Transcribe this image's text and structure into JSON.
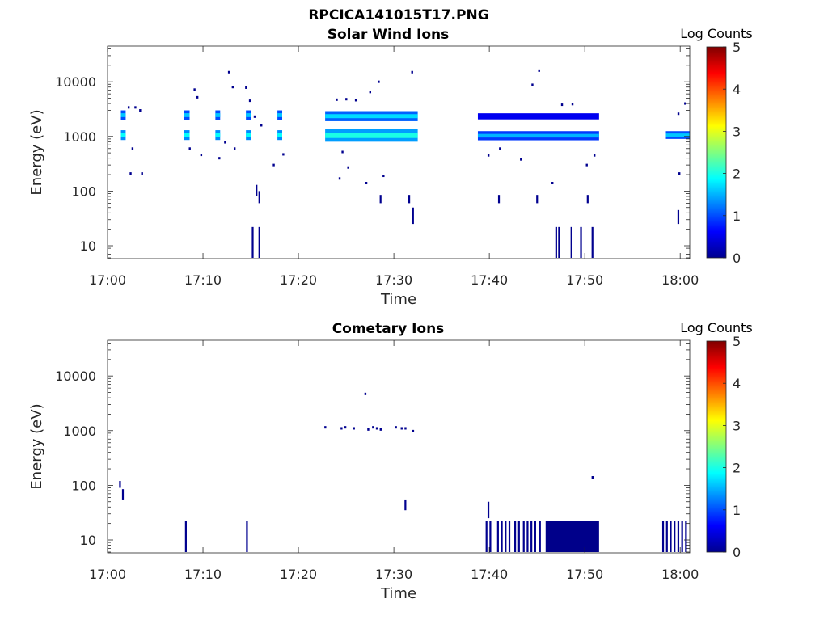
{
  "figure": {
    "title": "RPCICA141015T17.PNG"
  },
  "chart_data": [
    {
      "type": "heatmap",
      "title": "Solar Wind Ions",
      "xlabel": "Time",
      "ylabel": "Energy (eV)",
      "x_ticks": [
        "17:00",
        "17:10",
        "17:20",
        "17:30",
        "17:40",
        "17:50",
        "18:00"
      ],
      "x_range_minutes": [
        0,
        61
      ],
      "y_scale": "log",
      "y_ticks": [
        "10",
        "100",
        "1000",
        "10000"
      ],
      "y_range": [
        5.8,
        45000
      ],
      "colorbar": {
        "title": "Log Counts",
        "range": [
          0,
          5
        ],
        "ticks": [
          "0",
          "1",
          "2",
          "3",
          "4",
          "5"
        ],
        "colormap": "jet"
      },
      "intensity_cells": [
        {
          "t0": 1.4,
          "t1": 1.9,
          "e0": 2000,
          "e1": 3000,
          "v": 1.0
        },
        {
          "t0": 1.4,
          "t1": 1.9,
          "e0": 860,
          "e1": 1300,
          "v": 1.3
        },
        {
          "t0": 8.0,
          "t1": 8.6,
          "e0": 2000,
          "e1": 3000,
          "v": 1.0
        },
        {
          "t0": 8.0,
          "t1": 8.6,
          "e0": 860,
          "e1": 1300,
          "v": 1.3
        },
        {
          "t0": 11.3,
          "t1": 11.8,
          "e0": 2000,
          "e1": 3000,
          "v": 1.0
        },
        {
          "t0": 11.3,
          "t1": 11.8,
          "e0": 860,
          "e1": 1300,
          "v": 1.3
        },
        {
          "t0": 14.5,
          "t1": 15.0,
          "e0": 2000,
          "e1": 3000,
          "v": 1.0
        },
        {
          "t0": 14.5,
          "t1": 15.0,
          "e0": 860,
          "e1": 1300,
          "v": 1.3
        },
        {
          "t0": 17.8,
          "t1": 18.3,
          "e0": 2000,
          "e1": 3000,
          "v": 1.0
        },
        {
          "t0": 17.8,
          "t1": 18.3,
          "e0": 860,
          "e1": 1300,
          "v": 1.3
        },
        {
          "t0": 22.8,
          "t1": 32.5,
          "e0": 1900,
          "e1": 2900,
          "v": 1.1
        },
        {
          "t0": 22.8,
          "t1": 32.5,
          "e0": 800,
          "e1": 1350,
          "v": 1.4
        },
        {
          "t0": 38.8,
          "t1": 51.5,
          "e0": 2050,
          "e1": 2650,
          "v": 0.55
        },
        {
          "t0": 38.8,
          "t1": 51.5,
          "e0": 850,
          "e1": 1250,
          "v": 0.9
        },
        {
          "t0": 58.5,
          "t1": 61.0,
          "e0": 900,
          "e1": 1250,
          "v": 1.0
        }
      ],
      "scatter_points": [
        {
          "t": 2.2,
          "e": 3400
        },
        {
          "t": 2.9,
          "e": 3400
        },
        {
          "t": 3.4,
          "e": 3000
        },
        {
          "t": 2.6,
          "e": 600
        },
        {
          "t": 2.4,
          "e": 210
        },
        {
          "t": 3.6,
          "e": 210
        },
        {
          "t": 9.1,
          "e": 7200
        },
        {
          "t": 9.4,
          "e": 5200
        },
        {
          "t": 8.6,
          "e": 600
        },
        {
          "t": 9.8,
          "e": 460
        },
        {
          "t": 12.7,
          "e": 15000
        },
        {
          "t": 13.1,
          "e": 8000
        },
        {
          "t": 12.3,
          "e": 780
        },
        {
          "t": 13.3,
          "e": 600
        },
        {
          "t": 11.7,
          "e": 400
        },
        {
          "t": 14.5,
          "e": 7800
        },
        {
          "t": 14.9,
          "e": 4500
        },
        {
          "t": 15.4,
          "e": 2300
        },
        {
          "t": 16.1,
          "e": 1600
        },
        {
          "t": 17.4,
          "e": 300
        },
        {
          "t": 18.4,
          "e": 470
        },
        {
          "t": 24.0,
          "e": 4700
        },
        {
          "t": 25.0,
          "e": 4800
        },
        {
          "t": 26.0,
          "e": 4600
        },
        {
          "t": 28.4,
          "e": 10000
        },
        {
          "t": 27.5,
          "e": 6500
        },
        {
          "t": 31.9,
          "e": 15000
        },
        {
          "t": 24.6,
          "e": 520
        },
        {
          "t": 25.2,
          "e": 270
        },
        {
          "t": 24.3,
          "e": 170
        },
        {
          "t": 27.1,
          "e": 140
        },
        {
          "t": 28.9,
          "e": 190
        },
        {
          "t": 39.9,
          "e": 450
        },
        {
          "t": 41.1,
          "e": 600
        },
        {
          "t": 43.3,
          "e": 380
        },
        {
          "t": 44.5,
          "e": 8800
        },
        {
          "t": 45.2,
          "e": 16000
        },
        {
          "t": 47.6,
          "e": 3800
        },
        {
          "t": 48.7,
          "e": 3900
        },
        {
          "t": 46.6,
          "e": 140
        },
        {
          "t": 50.2,
          "e": 300
        },
        {
          "t": 51.0,
          "e": 450
        },
        {
          "t": 59.8,
          "e": 2600
        },
        {
          "t": 60.5,
          "e": 4000
        },
        {
          "t": 59.9,
          "e": 210
        }
      ],
      "vertical_streaks": [
        {
          "t": 15.2,
          "e0": 6,
          "e1": 22
        },
        {
          "t": 15.9,
          "e0": 6,
          "e1": 22
        },
        {
          "t": 15.6,
          "e0": 80,
          "e1": 130
        },
        {
          "t": 15.9,
          "e0": 60,
          "e1": 100
        },
        {
          "t": 28.6,
          "e0": 60,
          "e1": 85
        },
        {
          "t": 31.6,
          "e0": 60,
          "e1": 85
        },
        {
          "t": 32.0,
          "e0": 25,
          "e1": 50
        },
        {
          "t": 41.0,
          "e0": 60,
          "e1": 85
        },
        {
          "t": 45.0,
          "e0": 60,
          "e1": 85
        },
        {
          "t": 50.3,
          "e0": 60,
          "e1": 85
        },
        {
          "t": 47.0,
          "e0": 6,
          "e1": 22
        },
        {
          "t": 47.3,
          "e0": 6,
          "e1": 22
        },
        {
          "t": 48.6,
          "e0": 6,
          "e1": 22
        },
        {
          "t": 49.6,
          "e0": 6,
          "e1": 22
        },
        {
          "t": 50.8,
          "e0": 6,
          "e1": 22
        },
        {
          "t": 59.8,
          "e0": 25,
          "e1": 45
        }
      ]
    },
    {
      "type": "heatmap",
      "title": "Cometary Ions",
      "xlabel": "Time",
      "ylabel": "Energy (eV)",
      "x_ticks": [
        "17:00",
        "17:10",
        "17:20",
        "17:30",
        "17:40",
        "17:50",
        "18:00"
      ],
      "x_range_minutes": [
        0,
        61
      ],
      "y_scale": "log",
      "y_ticks": [
        "10",
        "100",
        "1000",
        "10000"
      ],
      "y_range": [
        5.8,
        45000
      ],
      "colorbar": {
        "title": "Log Counts",
        "range": [
          0,
          5
        ],
        "ticks": [
          "0",
          "1",
          "2",
          "3",
          "4",
          "5"
        ],
        "colormap": "jet"
      },
      "intensity_cells": [
        {
          "t0": 45.9,
          "t1": 51.5,
          "e0": 6,
          "e1": 22,
          "v": 0.05
        }
      ],
      "scatter_points": [
        {
          "t": 22.8,
          "e": 1150
        },
        {
          "t": 24.5,
          "e": 1100
        },
        {
          "t": 24.9,
          "e": 1150
        },
        {
          "t": 25.8,
          "e": 1100
        },
        {
          "t": 27.3,
          "e": 1050
        },
        {
          "t": 27.8,
          "e": 1150
        },
        {
          "t": 28.2,
          "e": 1100
        },
        {
          "t": 28.6,
          "e": 1050
        },
        {
          "t": 30.2,
          "e": 1150
        },
        {
          "t": 30.8,
          "e": 1100
        },
        {
          "t": 31.2,
          "e": 1100
        },
        {
          "t": 32.0,
          "e": 980
        },
        {
          "t": 27.0,
          "e": 4700
        },
        {
          "t": 50.8,
          "e": 140
        }
      ],
      "vertical_streaks": [
        {
          "t": 1.3,
          "e0": 90,
          "e1": 120
        },
        {
          "t": 1.6,
          "e0": 55,
          "e1": 85
        },
        {
          "t": 8.2,
          "e0": 6,
          "e1": 22
        },
        {
          "t": 14.6,
          "e0": 6,
          "e1": 22
        },
        {
          "t": 31.2,
          "e0": 35,
          "e1": 55
        },
        {
          "t": 39.9,
          "e0": 25,
          "e1": 50
        },
        {
          "t": 39.7,
          "e0": 6,
          "e1": 22
        },
        {
          "t": 40.1,
          "e0": 6,
          "e1": 22
        },
        {
          "t": 40.9,
          "e0": 6,
          "e1": 22
        },
        {
          "t": 41.3,
          "e0": 6,
          "e1": 22
        },
        {
          "t": 41.7,
          "e0": 6,
          "e1": 22
        },
        {
          "t": 42.1,
          "e0": 6,
          "e1": 22
        },
        {
          "t": 42.7,
          "e0": 6,
          "e1": 22
        },
        {
          "t": 43.1,
          "e0": 6,
          "e1": 22
        },
        {
          "t": 43.6,
          "e0": 6,
          "e1": 22
        },
        {
          "t": 44.0,
          "e0": 6,
          "e1": 22
        },
        {
          "t": 44.4,
          "e0": 6,
          "e1": 22
        },
        {
          "t": 44.8,
          "e0": 6,
          "e1": 22
        },
        {
          "t": 45.3,
          "e0": 6,
          "e1": 22
        },
        {
          "t": 58.2,
          "e0": 6,
          "e1": 22
        },
        {
          "t": 58.6,
          "e0": 6,
          "e1": 22
        },
        {
          "t": 59.0,
          "e0": 6,
          "e1": 22
        },
        {
          "t": 59.4,
          "e0": 6,
          "e1": 22
        },
        {
          "t": 59.8,
          "e0": 6,
          "e1": 22
        },
        {
          "t": 60.2,
          "e0": 6,
          "e1": 22
        },
        {
          "t": 60.6,
          "e0": 6,
          "e1": 22
        }
      ]
    }
  ]
}
